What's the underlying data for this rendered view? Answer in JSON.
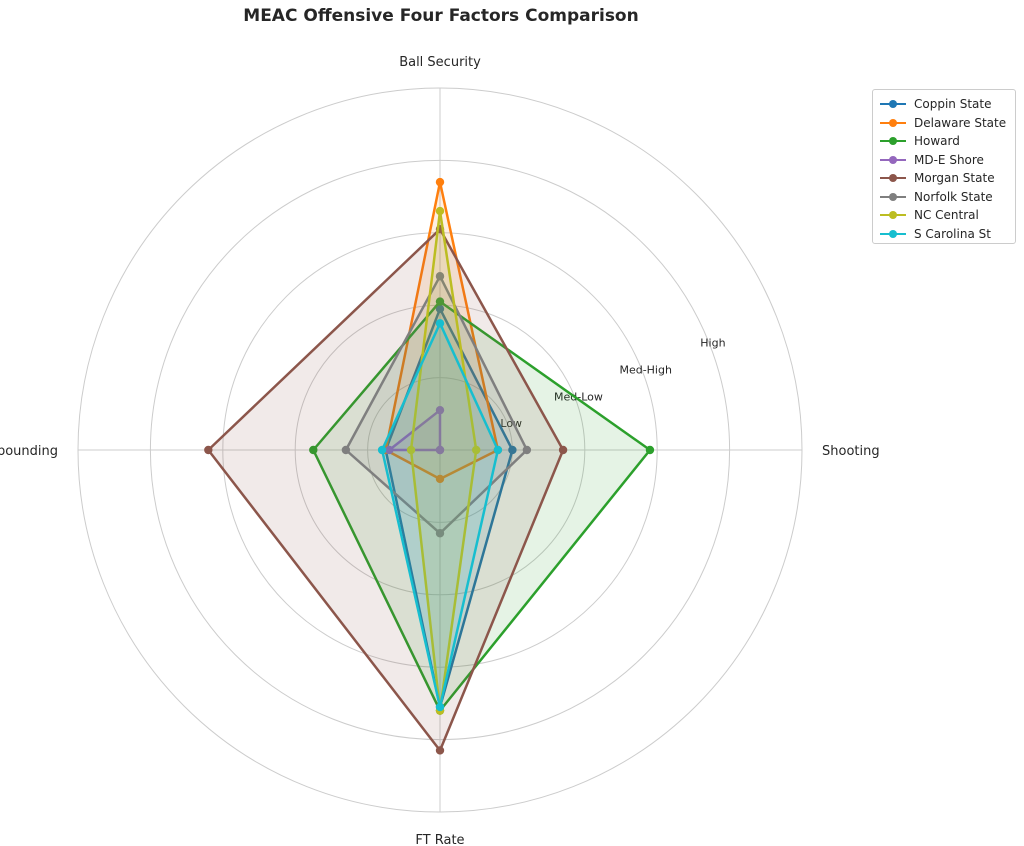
{
  "chart_data": {
    "type": "radar",
    "title": "MEAC Offensive Four Factors Comparison",
    "axes": [
      "Ball Security",
      "Shooting",
      "FT Rate",
      "Off Rebounding"
    ],
    "ring_labels": [
      "Low",
      "Med-Low",
      "Med-High",
      "High"
    ],
    "rlim": [
      0,
      5
    ],
    "grid": true,
    "legend_position": "upper-right",
    "series": [
      {
        "name": "Coppin State",
        "color": "#1f77b4",
        "values": [
          1.95,
          1.0,
          3.55,
          0.75
        ]
      },
      {
        "name": "Delaware State",
        "color": "#ff7f0e",
        "values": [
          3.7,
          0.8,
          0.4,
          0.75
        ]
      },
      {
        "name": "Howard",
        "color": "#2ca02c",
        "values": [
          2.05,
          2.9,
          3.6,
          1.75
        ]
      },
      {
        "name": "MD-E Shore",
        "color": "#9467bd",
        "values": [
          0.55,
          0.0,
          0.0,
          0.7
        ]
      },
      {
        "name": "Morgan State",
        "color": "#8c564b",
        "values": [
          3.05,
          1.7,
          4.15,
          3.2
        ]
      },
      {
        "name": "Norfolk State",
        "color": "#7f7f7f",
        "values": [
          2.4,
          1.2,
          1.15,
          1.3
        ]
      },
      {
        "name": "NC Central",
        "color": "#bcbd22",
        "values": [
          3.3,
          0.5,
          3.6,
          0.4
        ]
      },
      {
        "name": "S Carolina St",
        "color": "#17becf",
        "values": [
          1.75,
          0.8,
          3.55,
          0.8
        ]
      }
    ]
  }
}
